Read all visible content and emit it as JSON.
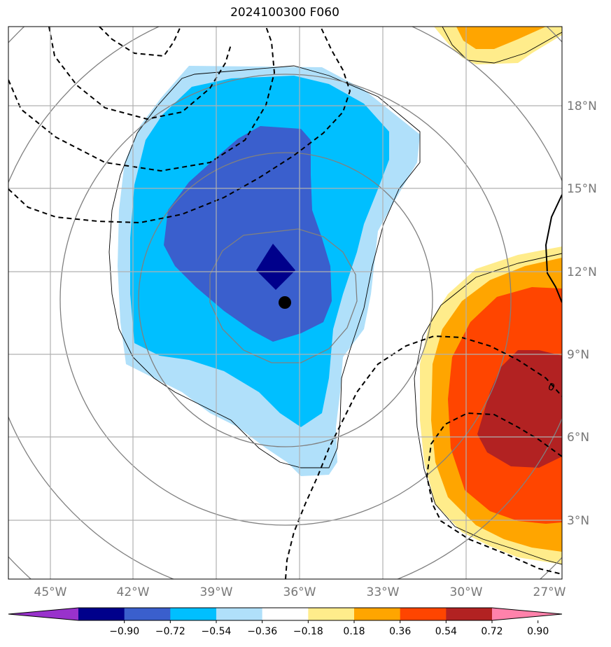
{
  "title": "2024100300 F060",
  "chart_data": {
    "type": "contour-map",
    "title": "2024100300 F060",
    "lon_labels": [
      "45°W",
      "42°W",
      "39°W",
      "36°W",
      "33°W",
      "30°W",
      "27°W"
    ],
    "lat_labels": [
      "18°N",
      "15°N",
      "12°N",
      "9°N",
      "6°N",
      "3°N"
    ],
    "extent": {
      "lon_min": -46.5,
      "lon_max": -26.7,
      "lat_min": 1.0,
      "lat_max": 20.8
    },
    "colorbar": {
      "levels": [
        "−0.90",
        "−0.72",
        "−0.54",
        "−0.36",
        "−0.18",
        "0.18",
        "0.36",
        "0.54",
        "0.72",
        "0.90"
      ],
      "colors": [
        "#9932cc",
        "#00008b",
        "#3a5fcd",
        "#00bfff",
        "#b0e0fa",
        "#ffffff",
        "#ffec8b",
        "#ffa500",
        "#ff4500",
        "#b22222",
        "#ff82ab"
      ],
      "extend": "both"
    },
    "contour_label": "0",
    "storm_center": {
      "lon": -36.6,
      "lat": 10.9
    },
    "grid": true
  }
}
